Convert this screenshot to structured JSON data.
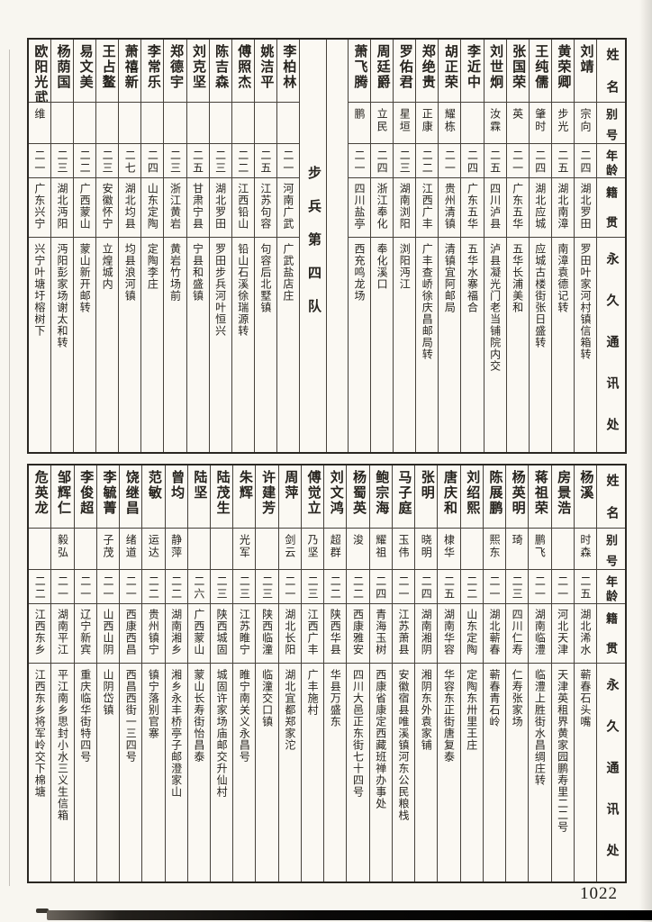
{
  "page": {
    "number": "1022"
  },
  "colors": {
    "ink": "#2a2722",
    "paper": "#f8f6f0",
    "rule": "#46413a"
  },
  "headers": {
    "name": "姓名",
    "alias": "别号",
    "age": "年龄",
    "origin": "籍贯",
    "address": "永久通讯处"
  },
  "top_table": {
    "divider_label": "步兵第四队",
    "divider_after_index": 10,
    "people": [
      {
        "name": "刘靖",
        "alias": "宗向",
        "age": "二四",
        "origin": "湖北罗田",
        "address": "罗田叶家河村镇信箱转"
      },
      {
        "name": "黄荣卿",
        "alias": "步光",
        "age": "二五",
        "origin": "湖北南漳",
        "address": "南漳袁德记转"
      },
      {
        "name": "王纯儒",
        "alias": "肇时",
        "age": "二四",
        "origin": "湖北应城",
        "address": "应城古楼街张日盛转"
      },
      {
        "name": "张国荣",
        "alias": "英",
        "age": "二一",
        "origin": "广东五华",
        "address": "五华长浦美和"
      },
      {
        "name": "刘世炯",
        "alias": "汝霖",
        "age": "二五",
        "origin": "四川泸县",
        "address": "泸县凝光门老当铺院内交"
      },
      {
        "name": "李近中",
        "alias": "",
        "age": "二四",
        "origin": "广东五华",
        "address": "五华水寨福合"
      },
      {
        "name": "胡正荣",
        "alias": "耀栋",
        "age": "二一",
        "origin": "贵州清镇",
        "address": "清镇宜阿邮局"
      },
      {
        "name": "郑绝贵",
        "alias": "正康",
        "age": "二二",
        "origin": "江西广丰",
        "address": "广丰查峤徐庆昌邮局转"
      },
      {
        "name": "罗佑君",
        "alias": "星垣",
        "age": "二三",
        "origin": "湖南浏阳",
        "address": "浏阳沔江"
      },
      {
        "name": "周廷爵",
        "alias": "立民",
        "age": "二四",
        "origin": "浙江奉化",
        "address": "奉化溪口"
      },
      {
        "name": "萧飞腾",
        "alias": "鹏",
        "age": "二一",
        "origin": "四川盐亭",
        "address": "西充鸣龙场"
      },
      {
        "name": "李柏林",
        "alias": "",
        "age": "二一",
        "origin": "河南广武",
        "address": "广武盐店庄"
      },
      {
        "name": "姚洁平",
        "alias": "",
        "age": "二五",
        "origin": "江苏句容",
        "address": "句容后北墅镇"
      },
      {
        "name": "傅照杰",
        "alias": "",
        "age": "二二",
        "origin": "江西铅山",
        "address": "铅山石溪徐瑞源转"
      },
      {
        "name": "陈吉森",
        "alias": "",
        "age": "二三",
        "origin": "湖北罗田",
        "address": "罗田步兵河叶恒兴"
      },
      {
        "name": "刘克坚",
        "alias": "",
        "age": "二五",
        "origin": "甘肃宁县",
        "address": "宁县和盛镇"
      },
      {
        "name": "郑德宇",
        "alias": "",
        "age": "二三",
        "origin": "浙江黄岩",
        "address": "黄岩竹场前"
      },
      {
        "name": "李常乐",
        "alias": "",
        "age": "二四",
        "origin": "山东定陶",
        "address": "定陶李庄"
      },
      {
        "name": "萧禧新",
        "alias": "",
        "age": "二七",
        "origin": "湖北均县",
        "address": "均县浪河镇"
      },
      {
        "name": "王占鳌",
        "alias": "",
        "age": "二三",
        "origin": "安徽怀宁",
        "address": "立煌城内"
      },
      {
        "name": "易文美",
        "alias": "",
        "age": "二二",
        "origin": "广西蒙山",
        "address": "蒙山新开邮转"
      },
      {
        "name": "杨荫国",
        "alias": "",
        "age": "二三",
        "origin": "湖北沔阳",
        "address": "沔阳彭家场谢太和转"
      },
      {
        "name": "欧阳光武",
        "alias": "维",
        "age": "二一",
        "origin": "广东兴宁",
        "address": "兴宁叶塘圩榕树下"
      }
    ]
  },
  "bottom_table": {
    "divider_label": "",
    "divider_after_index": null,
    "people": [
      {
        "name": "杨溪",
        "alias": "时森",
        "age": "二五",
        "origin": "湖北浠水",
        "address": "蕲春石头嘴"
      },
      {
        "name": "房景浩",
        "alias": "",
        "age": "二一",
        "origin": "河北天津",
        "address": "天津英租界黄家园鹏寿里二二号"
      },
      {
        "name": "蒋祖荣",
        "alias": "鹏飞",
        "age": "二一",
        "origin": "湖南临澧",
        "address": "临澧上胜街水昌绸庄转"
      },
      {
        "name": "杨英明",
        "alias": "琦",
        "age": "二三",
        "origin": "四川仁寿",
        "address": "仁寿张家场"
      },
      {
        "name": "陈展鹏",
        "alias": "熙东",
        "age": "二一",
        "origin": "湖北蕲春",
        "address": "蕲春青石岭"
      },
      {
        "name": "刘绍熙",
        "alias": "",
        "age": "二二",
        "origin": "山东定陶",
        "address": "定陶东卅里王庄"
      },
      {
        "name": "唐庆和",
        "alias": "棣华",
        "age": "二五",
        "origin": "湖南华容",
        "address": "华容东正街唐复泰"
      },
      {
        "name": "张明",
        "alias": "晓明",
        "age": "二四",
        "origin": "湖南湘阴",
        "address": "湘阴东外袁家铺"
      },
      {
        "name": "马子庭",
        "alias": "玉伟",
        "age": "二一",
        "origin": "江苏萧县",
        "address": "安徽宿县唯溪镇河东公民粮栈"
      },
      {
        "name": "鲍宗海",
        "alias": "耀祖",
        "age": "二四",
        "origin": "青海玉树",
        "address": "西康省康定西藏班禅办事处"
      },
      {
        "name": "杨蜀英",
        "alias": "浚",
        "age": "二二",
        "origin": "西康雅安",
        "address": "四川大邑正东街七十四号"
      },
      {
        "name": "刘文鸿",
        "alias": "超群",
        "age": "二二",
        "origin": "陕西华县",
        "address": "华县万盛东"
      },
      {
        "name": "傅觉立",
        "alias": "乃坚",
        "age": "二三",
        "origin": "江西广丰",
        "address": "广丰施村"
      },
      {
        "name": "周萍",
        "alias": "剑云",
        "age": "二一",
        "origin": "湖北长阳",
        "address": "湖北宜都郑家沱"
      },
      {
        "name": "许建芳",
        "alias": "",
        "age": "二三",
        "origin": "陕西临潼",
        "address": "临潼交口镇"
      },
      {
        "name": "朱辉",
        "alias": "光军",
        "age": "二三",
        "origin": "江苏睢宁",
        "address": "睢宁南关义永昌号"
      },
      {
        "name": "陆茂生",
        "alias": "",
        "age": "二三",
        "origin": "陕西城固",
        "address": "城固许家场庙邮交升仙村"
      },
      {
        "name": "陆坚",
        "alias": "",
        "age": "二六",
        "origin": "广西蒙山",
        "address": "蒙山长寿街怡昌泰"
      },
      {
        "name": "曾均",
        "alias": "静萍",
        "age": "二二",
        "origin": "湖南湘乡",
        "address": "湘乡永丰桥亭子邮澄家山"
      },
      {
        "name": "范敏",
        "alias": "运达",
        "age": "二二",
        "origin": "贵州镇宁",
        "address": "镇宁落别官寨"
      },
      {
        "name": "饶继昌",
        "alias": "绪道",
        "age": "二一",
        "origin": "西康西昌",
        "address": "西昌西街一三四号"
      },
      {
        "name": "李毓菁",
        "alias": "子茂",
        "age": "二一",
        "origin": "山西山阴",
        "address": "山阴岱镇"
      },
      {
        "name": "李俊超",
        "alias": "",
        "age": "二一",
        "origin": "辽宁新宾",
        "address": "重庆临华街特四号"
      },
      {
        "name": "邹辉仁",
        "alias": "毅弘",
        "age": "二一",
        "origin": "湖南平江",
        "address": "平江南乡思封小水三义生信箱"
      },
      {
        "name": "危英龙",
        "alias": "",
        "age": "二二",
        "origin": "江西东乡",
        "address": "江西东乡将军岭交下棉塘"
      }
    ]
  }
}
